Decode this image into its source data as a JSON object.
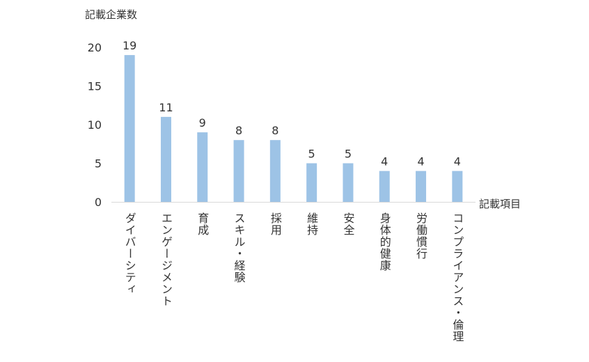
{
  "chart_data": {
    "type": "bar",
    "ylabel": "記載企業数",
    "xlabel": "記載項目",
    "categories": [
      "ダイバーシティ",
      "エンゲージメント",
      "育成",
      "スキル・経験",
      "採用",
      "維持",
      "安全",
      "身体的健康",
      "労働慣行",
      "コンプライアンス・倫理"
    ],
    "values": [
      19,
      11,
      9,
      8,
      8,
      5,
      5,
      4,
      4,
      4
    ],
    "ylim": [
      0,
      20
    ],
    "yticks": [
      "0",
      "5",
      "10",
      "15",
      "20"
    ],
    "grid": false,
    "legend": "none",
    "data_labels": true,
    "bar_color": "#9dc3e6",
    "axis_color": "#d9d9d9",
    "text_color": "#333333"
  }
}
